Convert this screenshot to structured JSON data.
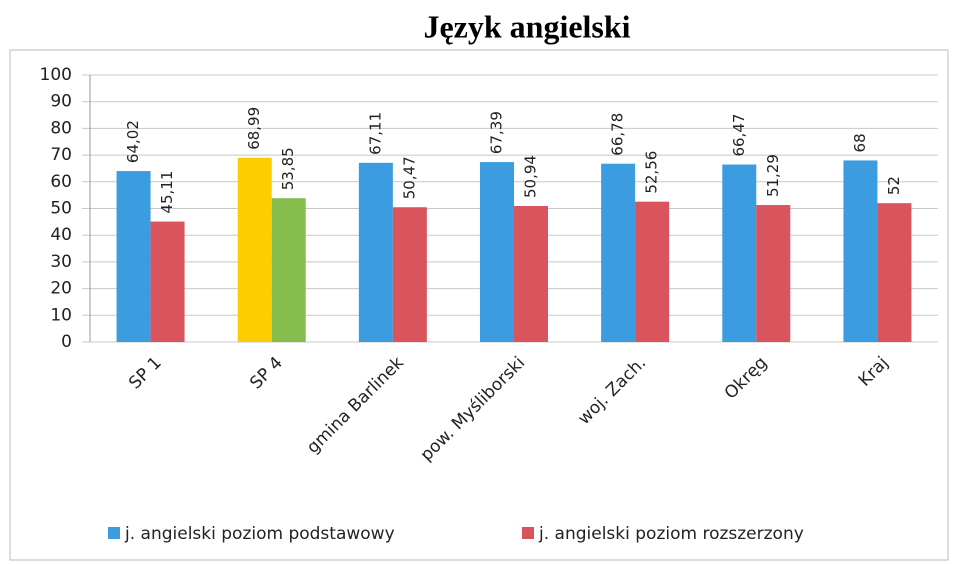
{
  "chart_data": {
    "type": "bar",
    "title": "Język angielski",
    "categories": [
      "SP 1",
      "SP 4",
      "gmina Barlinek",
      "pow. Myśliborski",
      "woj. Zach.",
      "Okręg",
      "Kraj"
    ],
    "series": [
      {
        "name": "j. angielski poziom podstawowy",
        "color": "#3b9de0",
        "colors": [
          "#3b9de0",
          "#ffcc00",
          "#3b9de0",
          "#3b9de0",
          "#3b9de0",
          "#3b9de0",
          "#3b9de0"
        ],
        "values": [
          64.02,
          68.99,
          67.11,
          67.39,
          66.78,
          66.47,
          68
        ],
        "value_labels": [
          "64,02",
          "68,99",
          "67,11",
          "67,39",
          "66,78",
          "66,47",
          "68"
        ]
      },
      {
        "name": "j. angielski poziom rozszerzony",
        "color": "#d9545c",
        "colors": [
          "#d9545c",
          "#84bd4c",
          "#d9545c",
          "#d9545c",
          "#d9545c",
          "#d9545c",
          "#d9545c"
        ],
        "values": [
          45.11,
          53.85,
          50.47,
          50.94,
          52.56,
          51.29,
          52
        ],
        "value_labels": [
          "45,11",
          "53,85",
          "50,47",
          "50,94",
          "52,56",
          "51,29",
          "52"
        ]
      }
    ],
    "ylim": [
      0,
      100
    ],
    "yticks": [
      0,
      10,
      20,
      30,
      40,
      50,
      60,
      70,
      80,
      90,
      100
    ],
    "grid": true
  }
}
